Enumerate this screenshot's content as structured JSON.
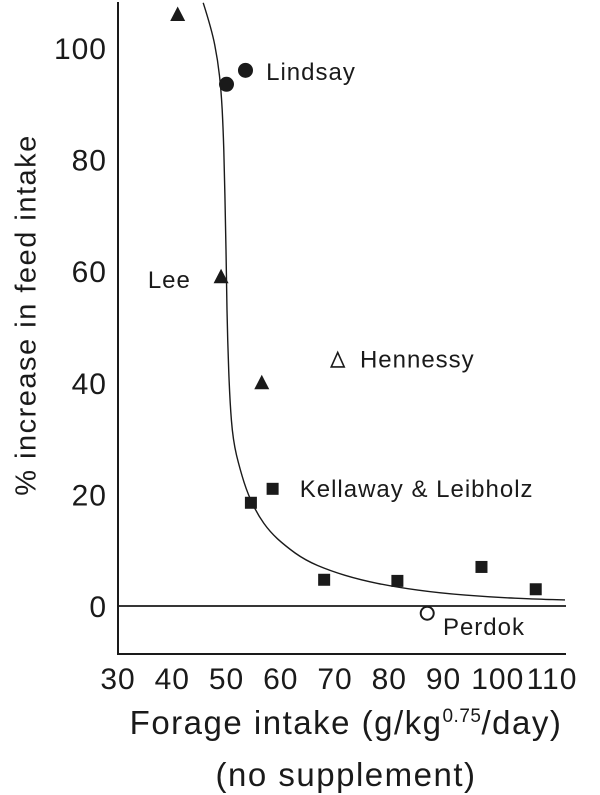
{
  "figure": {
    "background": "#ffffff",
    "ink_color": "#1a1a1a"
  },
  "chart_data": {
    "type": "scatter",
    "title": "",
    "ylabel": "% increase in feed intake",
    "xlabel": {
      "prefix": "Forage intake (g/kg",
      "superscript": "0.75",
      "suffix": "/day)",
      "line2": "(no supplement)"
    },
    "xlim": [
      30,
      112.5
    ],
    "ylim": [
      -8.5,
      108.5
    ],
    "x_ticks": [
      30,
      40,
      50,
      60,
      70,
      80,
      90,
      100,
      110
    ],
    "y_ticks": [
      0,
      20,
      40,
      60,
      80,
      100
    ],
    "grid": false,
    "zero_line_y": 0,
    "legend_position": "inline-annotations",
    "series": [
      {
        "name": "Lee",
        "marker": "filled-triangle",
        "points": [
          [
            41,
            106
          ],
          [
            49,
            59
          ],
          [
            56.5,
            40
          ]
        ]
      },
      {
        "name": "Lindsay",
        "marker": "filled-circle",
        "points": [
          [
            50,
            93.5
          ],
          [
            53.5,
            96
          ]
        ]
      },
      {
        "name": "Hennessy",
        "marker": "open-triangle",
        "points": [
          [
            70.5,
            44
          ]
        ]
      },
      {
        "name": "Kellaway & Leibholz",
        "marker": "filled-square",
        "points": [
          [
            54.5,
            18.5
          ],
          [
            58.5,
            21
          ],
          [
            68,
            4.7
          ],
          [
            81.5,
            4.5
          ],
          [
            97,
            7
          ],
          [
            107,
            3
          ]
        ]
      },
      {
        "name": "Perdok",
        "marker": "open-circle",
        "points": [
          [
            87,
            -1.3
          ]
        ]
      }
    ],
    "curve": {
      "description": "fitted response curve (steep decline flattening to asymptote near zero)",
      "points": [
        [
          45.7,
          108.1
        ],
        [
          47.3,
          103.2
        ],
        [
          48.4,
          97.8
        ],
        [
          49.0,
          92.5
        ],
        [
          49.4,
          85.3
        ],
        [
          49.6,
          78.1
        ],
        [
          49.8,
          69.2
        ],
        [
          50.0,
          58.4
        ],
        [
          50.2,
          47.7
        ],
        [
          50.6,
          36.9
        ],
        [
          51.2,
          29.7
        ],
        [
          52.5,
          24.4
        ],
        [
          54.0,
          19.9
        ],
        [
          55.8,
          16.3
        ],
        [
          58.0,
          13.3
        ],
        [
          60.8,
          10.8
        ],
        [
          64.5,
          8.2
        ],
        [
          69.1,
          6.3
        ],
        [
          74.6,
          4.7
        ],
        [
          81.1,
          3.4
        ],
        [
          89.4,
          2.3
        ],
        [
          98.6,
          1.6
        ],
        [
          107.8,
          1.2
        ],
        [
          112.4,
          1.1
        ]
      ]
    },
    "annotations": [
      {
        "text": "Lindsay",
        "x": 57.3,
        "y": 94.3
      },
      {
        "text": "Lee",
        "x": 35.5,
        "y": 57.0
      },
      {
        "text": "Hennessy",
        "x": 74.6,
        "y": 42.7
      },
      {
        "text": "Kellaway & Leibholz",
        "x": 63.5,
        "y": 19.5
      },
      {
        "text": "Perdok",
        "x": 89.9,
        "y": -5.2
      }
    ]
  }
}
